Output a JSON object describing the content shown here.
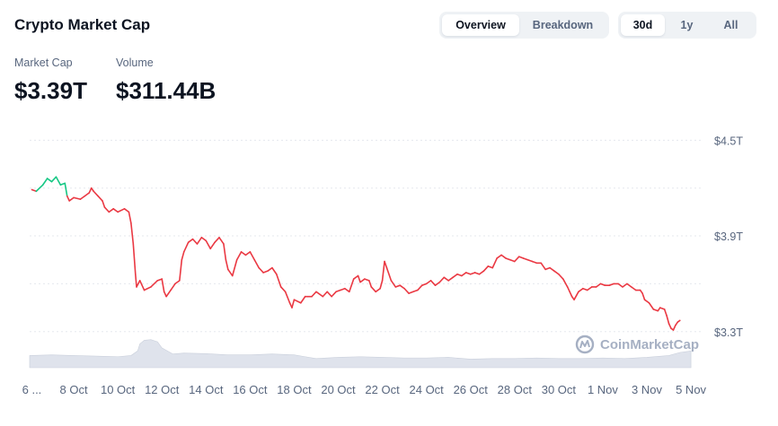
{
  "header": {
    "title": "Crypto Market Cap",
    "view_tabs": [
      {
        "label": "Overview",
        "active": true
      },
      {
        "label": "Breakdown",
        "active": false
      }
    ],
    "range_tabs": [
      {
        "label": "30d",
        "active": true
      },
      {
        "label": "1y",
        "active": false
      },
      {
        "label": "All",
        "active": false
      }
    ]
  },
  "stats": {
    "market_cap_label": "Market Cap",
    "market_cap_value": "$3.39T",
    "volume_label": "Volume",
    "volume_value": "$311.44B"
  },
  "watermark": {
    "text": "CoinMarketCap",
    "icon": "coinmarketcap-logo-icon"
  },
  "colors": {
    "up": "#16c784",
    "down": "#ea3943",
    "volume_fill": "#dfe3ec",
    "grid": "#e5e8ee"
  },
  "chart_data": {
    "type": "line",
    "x_unit": "day (Oct 6 to Nov 5)",
    "y_unit": "trillion USD",
    "yticks": [
      {
        "value": 4.5,
        "label": "$4.5T"
      },
      {
        "value": 3.9,
        "label": "$3.9T"
      },
      {
        "value": 3.3,
        "label": "$3.3T"
      }
    ],
    "xticks": [
      {
        "day": 0.1,
        "label": "6 ..."
      },
      {
        "day": 2,
        "label": "8 Oct"
      },
      {
        "day": 4,
        "label": "10 Oct"
      },
      {
        "day": 6,
        "label": "12 Oct"
      },
      {
        "day": 8,
        "label": "14 Oct"
      },
      {
        "day": 10,
        "label": "16 Oct"
      },
      {
        "day": 12,
        "label": "18 Oct"
      },
      {
        "day": 14,
        "label": "20 Oct"
      },
      {
        "day": 16,
        "label": "22 Oct"
      },
      {
        "day": 18,
        "label": "24 Oct"
      },
      {
        "day": 20,
        "label": "26 Oct"
      },
      {
        "day": 22,
        "label": "28 Oct"
      },
      {
        "day": 24,
        "label": "30 Oct"
      },
      {
        "day": 26,
        "label": "1 Nov"
      },
      {
        "day": 28,
        "label": "3 Nov"
      },
      {
        "day": 30,
        "label": "5 Nov"
      }
    ],
    "xlim": [
      0,
      30.2
    ],
    "ylim": [
      3.13,
      4.62
    ],
    "baseline": 4.19,
    "series": [
      {
        "values": [
          [
            0.1,
            4.19
          ],
          [
            0.3,
            4.18
          ],
          [
            0.6,
            4.22
          ],
          [
            0.8,
            4.26
          ],
          [
            1.0,
            4.24
          ],
          [
            1.2,
            4.27
          ],
          [
            1.4,
            4.22
          ],
          [
            1.6,
            4.23
          ],
          [
            1.7,
            4.15
          ],
          [
            1.8,
            4.12
          ],
          [
            2.0,
            4.14
          ],
          [
            2.3,
            4.13
          ],
          [
            2.5,
            4.15
          ],
          [
            2.7,
            4.17
          ],
          [
            2.8,
            4.2
          ],
          [
            2.9,
            4.18
          ],
          [
            3.1,
            4.15
          ],
          [
            3.3,
            4.12
          ],
          [
            3.4,
            4.08
          ],
          [
            3.6,
            4.05
          ],
          [
            3.8,
            4.07
          ],
          [
            4.0,
            4.05
          ],
          [
            4.3,
            4.07
          ],
          [
            4.5,
            4.05
          ],
          [
            4.6,
            3.98
          ],
          [
            4.7,
            3.85
          ],
          [
            4.8,
            3.66
          ],
          [
            4.85,
            3.58
          ],
          [
            5.0,
            3.62
          ],
          [
            5.2,
            3.56
          ],
          [
            5.5,
            3.58
          ],
          [
            5.8,
            3.62
          ],
          [
            6.0,
            3.63
          ],
          [
            6.1,
            3.55
          ],
          [
            6.2,
            3.52
          ],
          [
            6.4,
            3.56
          ],
          [
            6.6,
            3.6
          ],
          [
            6.8,
            3.62
          ],
          [
            6.9,
            3.75
          ],
          [
            7.0,
            3.8
          ],
          [
            7.2,
            3.86
          ],
          [
            7.4,
            3.88
          ],
          [
            7.6,
            3.85
          ],
          [
            7.8,
            3.89
          ],
          [
            8.0,
            3.87
          ],
          [
            8.2,
            3.82
          ],
          [
            8.4,
            3.86
          ],
          [
            8.6,
            3.89
          ],
          [
            8.8,
            3.85
          ],
          [
            8.9,
            3.75
          ],
          [
            9.0,
            3.69
          ],
          [
            9.2,
            3.65
          ],
          [
            9.4,
            3.75
          ],
          [
            9.6,
            3.8
          ],
          [
            9.8,
            3.78
          ],
          [
            10.0,
            3.8
          ],
          [
            10.2,
            3.75
          ],
          [
            10.4,
            3.7
          ],
          [
            10.6,
            3.67
          ],
          [
            10.8,
            3.68
          ],
          [
            11.0,
            3.7
          ],
          [
            11.2,
            3.66
          ],
          [
            11.4,
            3.58
          ],
          [
            11.6,
            3.55
          ],
          [
            11.8,
            3.48
          ],
          [
            11.9,
            3.45
          ],
          [
            12.0,
            3.5
          ],
          [
            12.3,
            3.48
          ],
          [
            12.5,
            3.52
          ],
          [
            12.8,
            3.52
          ],
          [
            13.0,
            3.55
          ],
          [
            13.3,
            3.52
          ],
          [
            13.5,
            3.55
          ],
          [
            13.7,
            3.52
          ],
          [
            13.9,
            3.55
          ],
          [
            14.1,
            3.56
          ],
          [
            14.3,
            3.57
          ],
          [
            14.5,
            3.55
          ],
          [
            14.7,
            3.63
          ],
          [
            14.9,
            3.65
          ],
          [
            15.0,
            3.61
          ],
          [
            15.2,
            3.63
          ],
          [
            15.4,
            3.62
          ],
          [
            15.5,
            3.58
          ],
          [
            15.7,
            3.55
          ],
          [
            15.9,
            3.57
          ],
          [
            16.0,
            3.62
          ],
          [
            16.1,
            3.74
          ],
          [
            16.2,
            3.7
          ],
          [
            16.4,
            3.62
          ],
          [
            16.6,
            3.58
          ],
          [
            16.8,
            3.59
          ],
          [
            17.0,
            3.57
          ],
          [
            17.2,
            3.54
          ],
          [
            17.4,
            3.55
          ],
          [
            17.6,
            3.56
          ],
          [
            17.8,
            3.59
          ],
          [
            18.0,
            3.6
          ],
          [
            18.2,
            3.62
          ],
          [
            18.4,
            3.59
          ],
          [
            18.6,
            3.61
          ],
          [
            18.8,
            3.64
          ],
          [
            19.0,
            3.62
          ],
          [
            19.2,
            3.64
          ],
          [
            19.4,
            3.66
          ],
          [
            19.6,
            3.65
          ],
          [
            19.8,
            3.67
          ],
          [
            20.0,
            3.66
          ],
          [
            20.2,
            3.67
          ],
          [
            20.4,
            3.66
          ],
          [
            20.6,
            3.68
          ],
          [
            20.8,
            3.71
          ],
          [
            21.0,
            3.7
          ],
          [
            21.2,
            3.76
          ],
          [
            21.4,
            3.78
          ],
          [
            21.6,
            3.76
          ],
          [
            21.8,
            3.75
          ],
          [
            22.0,
            3.74
          ],
          [
            22.2,
            3.77
          ],
          [
            22.4,
            3.76
          ],
          [
            22.6,
            3.75
          ],
          [
            22.8,
            3.74
          ],
          [
            23.0,
            3.73
          ],
          [
            23.2,
            3.73
          ],
          [
            23.4,
            3.69
          ],
          [
            23.6,
            3.7
          ],
          [
            23.8,
            3.68
          ],
          [
            24.0,
            3.66
          ],
          [
            24.2,
            3.63
          ],
          [
            24.4,
            3.58
          ],
          [
            24.5,
            3.55
          ],
          [
            24.6,
            3.52
          ],
          [
            24.7,
            3.5
          ],
          [
            24.9,
            3.55
          ],
          [
            25.1,
            3.57
          ],
          [
            25.3,
            3.56
          ],
          [
            25.5,
            3.58
          ],
          [
            25.7,
            3.58
          ],
          [
            25.9,
            3.6
          ],
          [
            26.1,
            3.59
          ],
          [
            26.3,
            3.59
          ],
          [
            26.5,
            3.6
          ],
          [
            26.7,
            3.6
          ],
          [
            26.9,
            3.58
          ],
          [
            27.1,
            3.6
          ],
          [
            27.3,
            3.58
          ],
          [
            27.5,
            3.56
          ],
          [
            27.7,
            3.56
          ],
          [
            27.8,
            3.54
          ],
          [
            27.9,
            3.5
          ],
          [
            28.1,
            3.48
          ],
          [
            28.3,
            3.44
          ],
          [
            28.5,
            3.43
          ],
          [
            28.6,
            3.45
          ],
          [
            28.8,
            3.44
          ],
          [
            28.9,
            3.4
          ],
          [
            29.0,
            3.35
          ],
          [
            29.1,
            3.32
          ],
          [
            29.2,
            3.31
          ],
          [
            29.3,
            3.34
          ],
          [
            29.4,
            3.36
          ],
          [
            29.5,
            3.37
          ]
        ]
      }
    ],
    "volume": [
      [
        0.0,
        0.4
      ],
      [
        1.0,
        0.42
      ],
      [
        2.0,
        0.4
      ],
      [
        3.0,
        0.38
      ],
      [
        4.0,
        0.36
      ],
      [
        4.6,
        0.4
      ],
      [
        4.9,
        0.55
      ],
      [
        5.0,
        0.78
      ],
      [
        5.2,
        0.9
      ],
      [
        5.5,
        0.92
      ],
      [
        5.8,
        0.85
      ],
      [
        6.0,
        0.65
      ],
      [
        6.5,
        0.45
      ],
      [
        7.0,
        0.48
      ],
      [
        8.0,
        0.46
      ],
      [
        9.0,
        0.42
      ],
      [
        10.0,
        0.42
      ],
      [
        11.0,
        0.45
      ],
      [
        12.0,
        0.42
      ],
      [
        12.5,
        0.36
      ],
      [
        13.0,
        0.3
      ],
      [
        14.0,
        0.34
      ],
      [
        15.0,
        0.36
      ],
      [
        16.0,
        0.34
      ],
      [
        17.0,
        0.32
      ],
      [
        18.0,
        0.32
      ],
      [
        19.0,
        0.34
      ],
      [
        20.0,
        0.28
      ],
      [
        21.0,
        0.3
      ],
      [
        22.0,
        0.3
      ],
      [
        23.0,
        0.32
      ],
      [
        24.0,
        0.3
      ],
      [
        25.0,
        0.3
      ],
      [
        26.0,
        0.32
      ],
      [
        27.0,
        0.3
      ],
      [
        28.0,
        0.34
      ],
      [
        29.0,
        0.4
      ],
      [
        29.5,
        0.5
      ],
      [
        30.0,
        0.55
      ]
    ]
  }
}
